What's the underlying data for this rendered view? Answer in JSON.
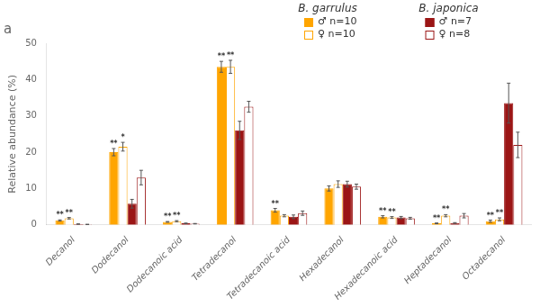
{
  "chart_data": {
    "type": "bar",
    "title": "a",
    "categories": [
      "Decanol",
      "Dodecanol",
      "Dodecanoic acid",
      "Tetradecanol",
      "Tetradecanoic acid",
      "Hexadecanol",
      "Hexadecanoic acid",
      "Heptadecanol",
      "Octadecanol"
    ],
    "ylabel": "Relative abundance (%)",
    "ylim": [
      0,
      50
    ],
    "yticks": [
      0,
      10,
      20,
      30,
      40,
      50
    ],
    "grid": false,
    "legend": "top",
    "series": [
      {
        "name": "♂ n=10",
        "group": "B. garrulus",
        "color": "#FFA500",
        "values": [
          1.2,
          20.0,
          0.8,
          43.5,
          4.0,
          10.0,
          2.2,
          0.4,
          1.0
        ],
        "errors": [
          0.15,
          1.0,
          0.1,
          1.5,
          0.5,
          0.7,
          0.3,
          0.1,
          0.3
        ],
        "annotations": [
          "**",
          "**",
          "**",
          "**",
          "**",
          null,
          "**",
          "**",
          "**"
        ]
      },
      {
        "name": "♀ n=10",
        "group": "B. garrulus",
        "color": "#FFA500",
        "values": [
          1.8,
          21.5,
          1.0,
          43.5,
          2.5,
          11.2,
          2.0,
          2.5,
          1.5
        ],
        "errors": [
          0.2,
          1.2,
          0.15,
          1.8,
          0.3,
          0.9,
          0.25,
          0.3,
          0.4
        ],
        "annotations": [
          "**",
          "*",
          "**",
          "**",
          null,
          null,
          "**",
          "**",
          "**"
        ]
      },
      {
        "name": "♂ n=7",
        "group": "B. japonica",
        "color": "#9B1515",
        "values": [
          0.2,
          5.8,
          0.4,
          26.0,
          2.2,
          11.2,
          2.0,
          0.5,
          33.5
        ],
        "errors": [
          0.05,
          1.2,
          0.08,
          2.5,
          0.5,
          0.8,
          0.3,
          0.1,
          5.5
        ],
        "annotations": [
          null,
          null,
          null,
          null,
          null,
          null,
          null,
          null,
          null
        ]
      },
      {
        "name": "♀ n=8",
        "group": "B. japonica",
        "color": "#9B1515",
        "values": [
          0.1,
          13.0,
          0.3,
          32.5,
          3.2,
          10.5,
          1.8,
          2.5,
          22.0
        ],
        "errors": [
          0.05,
          2.0,
          0.06,
          1.5,
          0.6,
          0.7,
          0.25,
          0.6,
          3.5
        ],
        "annotations": [
          null,
          null,
          null,
          null,
          null,
          null,
          null,
          null,
          null
        ]
      }
    ]
  }
}
